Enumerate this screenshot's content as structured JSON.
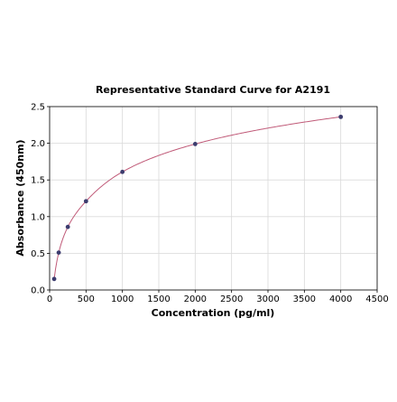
{
  "chart_data": {
    "type": "scatter",
    "title": "Representative Standard Curve for A2191",
    "xlabel": "Concentration (pg/ml)",
    "ylabel": "Absorbance (450nm)",
    "xlim": [
      0,
      4500
    ],
    "ylim": [
      0,
      2.5
    ],
    "xticks": [
      0,
      500,
      1000,
      1500,
      2000,
      2500,
      3000,
      3500,
      4000,
      4500
    ],
    "yticks": [
      0.0,
      0.5,
      1.0,
      1.5,
      2.0,
      2.5
    ],
    "xtick_labels": [
      "0",
      "500",
      "1000",
      "1500",
      "2000",
      "2500",
      "3000",
      "3500",
      "4000",
      "4500"
    ],
    "ytick_labels": [
      "0.0",
      "0.5",
      "1.0",
      "1.5",
      "2.0",
      "2.5"
    ],
    "grid": true,
    "series": [
      {
        "x": [
          62.5,
          125,
          250,
          500,
          1000,
          2000,
          4000
        ],
        "y": [
          0.15,
          0.51,
          0.86,
          1.21,
          1.61,
          1.99,
          2.36
        ],
        "marker_color": "#3c3c6e",
        "curve_color": "#c05a78",
        "fit_curve": true
      }
    ]
  }
}
